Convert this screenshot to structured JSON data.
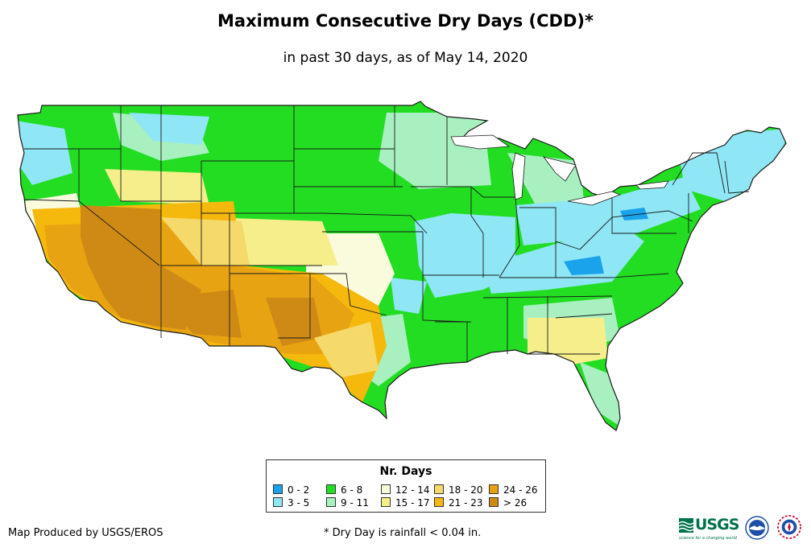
{
  "header": {
    "title": "Maximum Consecutive Dry Days (CDD)*",
    "subtitle": "in past 30 days, as of May 14, 2020"
  },
  "legend": {
    "title": "Nr. Days",
    "items": [
      {
        "label": "0 - 2",
        "color": "#1aa3ea"
      },
      {
        "label": "3 - 5",
        "color": "#8fe6f5"
      },
      {
        "label": "6 - 8",
        "color": "#22dd22"
      },
      {
        "label": "9 - 11",
        "color": "#a8f0c0"
      },
      {
        "label": "12 - 14",
        "color": "#fafadc"
      },
      {
        "label": "15 - 17",
        "color": "#f6ee8a"
      },
      {
        "label": "18 - 20",
        "color": "#f5d96a"
      },
      {
        "label": "21 - 23",
        "color": "#f5b80d"
      },
      {
        "label": "24 - 26",
        "color": "#e8a312"
      },
      {
        "label": "> 26",
        "color": "#cf8a16"
      }
    ]
  },
  "footer": {
    "credit": "Map Produced by USGS/EROS",
    "footnote": "* Dry Day is rainfall < 0.04 in."
  },
  "logos": {
    "usgs_text": "USGS",
    "usgs_tagline": "science for a changing world"
  }
}
